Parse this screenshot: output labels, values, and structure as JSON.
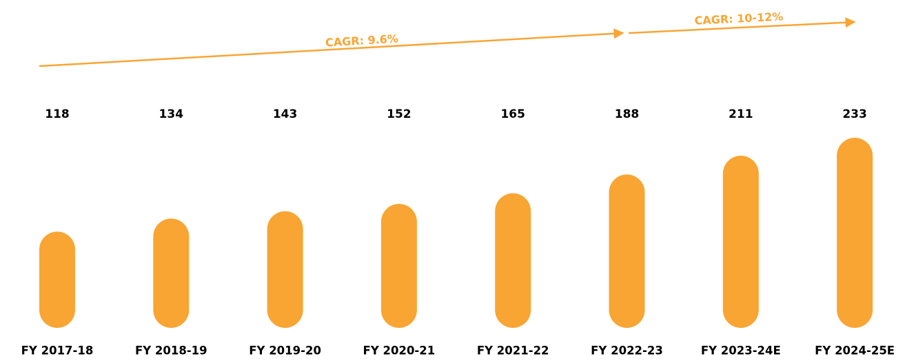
{
  "chart_data": {
    "type": "bar",
    "categories": [
      "FY 2017-18",
      "FY 2018-19",
      "FY 2019-20",
      "FY 2020-21",
      "FY 2021-22",
      "FY 2022-23",
      "FY 2023-24E",
      "FY 2024-25E"
    ],
    "values": [
      118,
      134,
      143,
      152,
      165,
      188,
      211,
      233
    ],
    "color": "#F9A533",
    "annotations": [
      "CAGR: 9.6%",
      "CAGR: 10-12%"
    ]
  }
}
